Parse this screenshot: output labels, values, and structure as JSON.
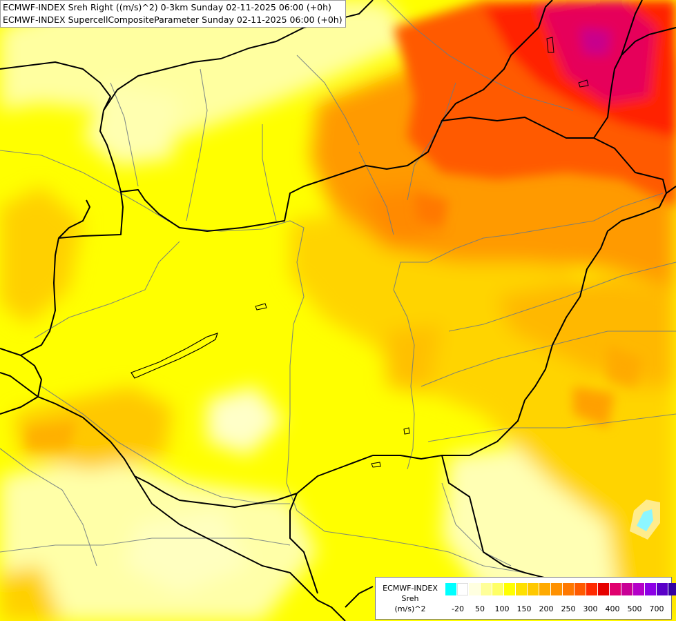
{
  "title": {
    "line1": "ECMWF-INDEX Sreh Right ((m/s)^2) 0-3km Sunday 02-11-2025 06:00 (+0h)",
    "line2": "ECMWF-INDEX SupercellCompositeParameter Sunday 02-11-2025 06:00 (+0h)"
  },
  "legend": {
    "line1": "ECMWF-INDEX",
    "line2": "Sreh",
    "line3": "(m/s)^2",
    "colors": [
      "#00ffff",
      "#ffffff",
      "#ffffe0",
      "#ffff99",
      "#ffff66",
      "#ffff00",
      "#ffe000",
      "#ffc800",
      "#ffaa00",
      "#ff9100",
      "#ff7800",
      "#ff5a00",
      "#ff2a00",
      "#e60000",
      "#e0006e",
      "#c80096",
      "#b400c8",
      "#8c00e6",
      "#5a00c8",
      "#3200a0",
      "#00007a"
    ],
    "ticks": [
      "-20",
      "50",
      "100",
      "150",
      "200",
      "250",
      "300",
      "400",
      "500",
      "700"
    ]
  },
  "colors": {
    "base_field": "#ffff00",
    "border": "#000000",
    "river": "#6e7a82"
  }
}
